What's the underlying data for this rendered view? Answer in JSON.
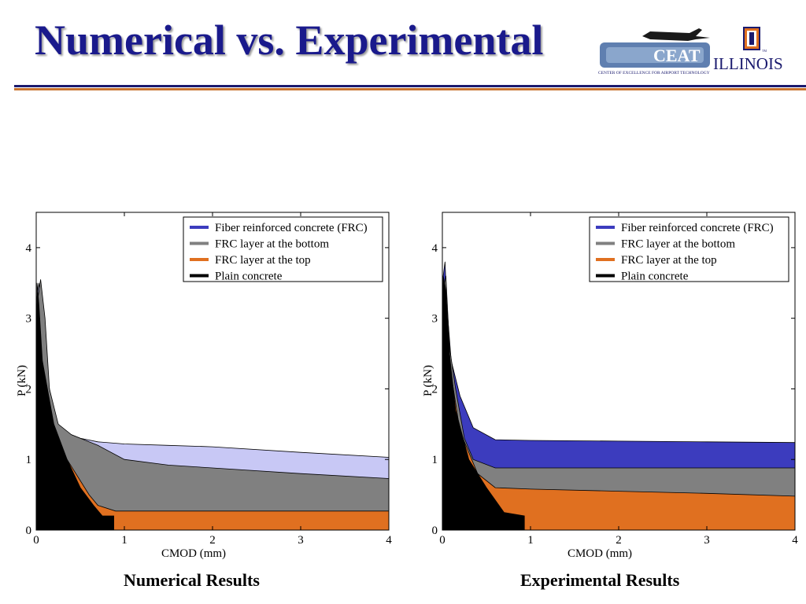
{
  "slide": {
    "title": "Numerical vs. Experimental",
    "logo": {
      "name": "CEAT",
      "tagline": "CENTER OF EXCELLENCE FOR AIRPORT TECHNOLOGY",
      "university": "ILLINOIS",
      "tm": "TM"
    },
    "captions": [
      "Numerical Results",
      "Experimental Results"
    ]
  },
  "colors": {
    "title": "#1a1a8c",
    "rule_navy": "#1a1a6e",
    "rule_orange": "#c8732e",
    "frc_numerical": "#c8c8f5",
    "frc_experimental": "#3c3cbe",
    "frc_bottom": "#808080",
    "frc_top": "#e07020",
    "plain": "#000000"
  },
  "chart_data": [
    {
      "type": "area",
      "xlabel": "CMOD (mm)",
      "ylabel": "P (kN)",
      "xlim": [
        0,
        4
      ],
      "ylim": [
        0,
        4.5
      ],
      "xticks": [
        0,
        1,
        2,
        3,
        4
      ],
      "yticks": [
        0,
        1,
        2,
        3,
        4
      ],
      "legend_position": "top-right",
      "series": [
        {
          "name": "Fiber reinforced concrete (FRC)",
          "color": "#c8c8f5",
          "points": [
            [
              0,
              0
            ],
            [
              0.01,
              3.3
            ],
            [
              0.03,
              3.5
            ],
            [
              0.05,
              3.2
            ],
            [
              0.1,
              2.4
            ],
            [
              0.2,
              1.6
            ],
            [
              0.3,
              1.4
            ],
            [
              0.5,
              1.3
            ],
            [
              0.7,
              1.25
            ],
            [
              1,
              1.22
            ],
            [
              1.5,
              1.2
            ],
            [
              2,
              1.18
            ],
            [
              3,
              1.1
            ],
            [
              4,
              1.03
            ],
            [
              4,
              0
            ]
          ]
        },
        {
          "name": "FRC layer at the bottom",
          "color": "#808080",
          "points": [
            [
              0,
              0
            ],
            [
              0.01,
              3.2
            ],
            [
              0.05,
              3.55
            ],
            [
              0.1,
              3.0
            ],
            [
              0.15,
              2.0
            ],
            [
              0.25,
              1.5
            ],
            [
              0.4,
              1.35
            ],
            [
              0.7,
              1.2
            ],
            [
              1,
              1.0
            ],
            [
              1.5,
              0.92
            ],
            [
              2,
              0.88
            ],
            [
              3,
              0.8
            ],
            [
              4,
              0.73
            ],
            [
              4,
              0
            ]
          ]
        },
        {
          "name": "FRC layer at the top",
          "color": "#e07020",
          "points": [
            [
              0,
              0
            ],
            [
              0.01,
              3.0
            ],
            [
              0.03,
              2.8
            ],
            [
              0.1,
              2.0
            ],
            [
              0.2,
              1.3
            ],
            [
              0.4,
              0.9
            ],
            [
              0.6,
              0.5
            ],
            [
              0.7,
              0.35
            ],
            [
              0.9,
              0.27
            ],
            [
              4,
              0.27
            ],
            [
              4,
              0
            ]
          ]
        },
        {
          "name": "Plain concrete",
          "color": "#000000",
          "points": [
            [
              0,
              0
            ],
            [
              0.01,
              3.5
            ],
            [
              0.03,
              3.2
            ],
            [
              0.07,
              2.4
            ],
            [
              0.2,
              1.5
            ],
            [
              0.35,
              1.0
            ],
            [
              0.5,
              0.6
            ],
            [
              0.65,
              0.35
            ],
            [
              0.75,
              0.2
            ],
            [
              0.88,
              0.2
            ],
            [
              0.88,
              0
            ]
          ]
        }
      ]
    },
    {
      "type": "area",
      "xlabel": "CMOD (mm)",
      "ylabel": "P (kN)",
      "xlim": [
        0,
        4
      ],
      "ylim": [
        0,
        4.5
      ],
      "xticks": [
        0,
        1,
        2,
        3,
        4
      ],
      "yticks": [
        0,
        1,
        2,
        3,
        4
      ],
      "legend_position": "top-right",
      "series": [
        {
          "name": "Fiber reinforced concrete (FRC)",
          "color": "#3c3cbe",
          "points": [
            [
              0,
              0
            ],
            [
              0.01,
              3.6
            ],
            [
              0.03,
              3.8
            ],
            [
              0.05,
              3.2
            ],
            [
              0.1,
              2.4
            ],
            [
              0.2,
              1.9
            ],
            [
              0.35,
              1.45
            ],
            [
              0.6,
              1.28
            ],
            [
              1,
              1.27
            ],
            [
              2,
              1.26
            ],
            [
              3,
              1.25
            ],
            [
              4,
              1.24
            ],
            [
              4,
              0
            ]
          ]
        },
        {
          "name": "FRC layer at the bottom",
          "color": "#808080",
          "points": [
            [
              0,
              0
            ],
            [
              0.01,
              3.4
            ],
            [
              0.04,
              3.6
            ],
            [
              0.08,
              2.6
            ],
            [
              0.15,
              2.0
            ],
            [
              0.25,
              1.3
            ],
            [
              0.35,
              1.0
            ],
            [
              0.6,
              0.88
            ],
            [
              1,
              0.88
            ],
            [
              2,
              0.88
            ],
            [
              3,
              0.88
            ],
            [
              4,
              0.88
            ],
            [
              4,
              0
            ]
          ]
        },
        {
          "name": "FRC layer at the top",
          "color": "#e07020",
          "points": [
            [
              0,
              0
            ],
            [
              0.01,
              3.5
            ],
            [
              0.05,
              3.0
            ],
            [
              0.1,
              2.2
            ],
            [
              0.2,
              1.4
            ],
            [
              0.4,
              0.8
            ],
            [
              0.6,
              0.6
            ],
            [
              1,
              0.58
            ],
            [
              2,
              0.55
            ],
            [
              3,
              0.52
            ],
            [
              4,
              0.48
            ],
            [
              4,
              0
            ]
          ]
        },
        {
          "name": "Plain concrete",
          "color": "#000000",
          "points": [
            [
              0,
              0
            ],
            [
              0.01,
              3.6
            ],
            [
              0.04,
              3.4
            ],
            [
              0.08,
              2.5
            ],
            [
              0.15,
              1.7
            ],
            [
              0.3,
              1.0
            ],
            [
              0.5,
              0.6
            ],
            [
              0.7,
              0.25
            ],
            [
              0.93,
              0.2
            ],
            [
              0.93,
              0
            ]
          ]
        }
      ]
    }
  ]
}
